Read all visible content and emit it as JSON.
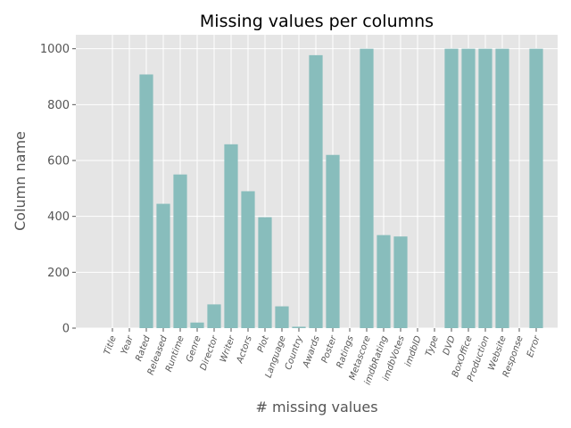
{
  "chart_data": {
    "type": "bar",
    "title": "Missing values per columns",
    "xlabel": "# missing values",
    "ylabel": "Column name",
    "categories": [
      "Title",
      "Year",
      "Rated",
      "Released",
      "Runtime",
      "Genre",
      "Director",
      "Writer",
      "Actors",
      "Plot",
      "Language",
      "Country",
      "Awards",
      "Poster",
      "Ratings",
      "Metascore",
      "imdbRating",
      "imdbVotes",
      "imdbID",
      "Type",
      "DVD",
      "BoxOffice",
      "Production",
      "Website",
      "Response",
      "Error"
    ],
    "values": [
      0,
      0,
      908,
      445,
      550,
      20,
      85,
      658,
      490,
      397,
      78,
      5,
      977,
      620,
      0,
      1000,
      333,
      328,
      0,
      0,
      1000,
      1000,
      1000,
      1000,
      0,
      1000
    ],
    "ylim": [
      0,
      1050
    ],
    "yticks": [
      0,
      200,
      400,
      600,
      800,
      1000
    ],
    "grid": true,
    "style": "ggplot",
    "colors": {
      "bar": "#88bdbc",
      "plot_bg": "#e5e5e5",
      "grid": "#ffffff"
    }
  }
}
